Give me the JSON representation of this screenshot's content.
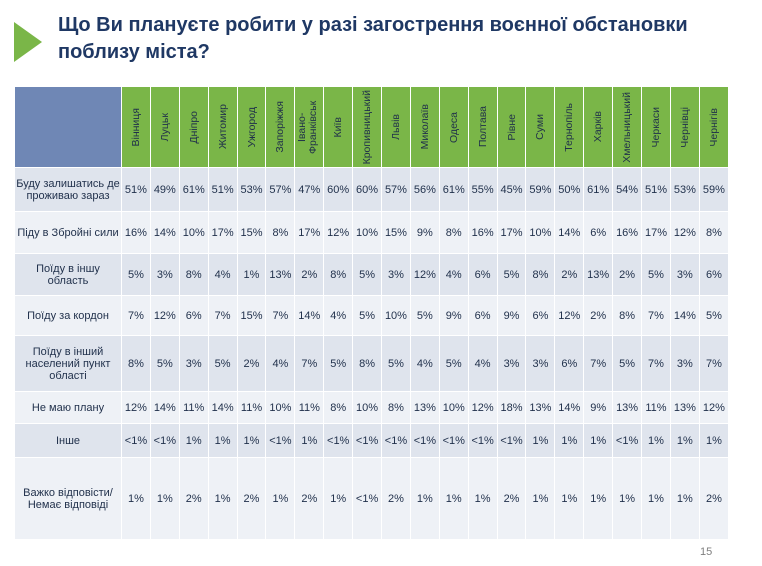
{
  "title": "Що Ви плануєте робити у разі загострення воєнної обстановки поблизу міста?",
  "page_number": "15",
  "colors": {
    "accent": "#7ab648",
    "header_blue": "#6f87b5",
    "title": "#1f3864"
  },
  "cities": [
    "Вінниця",
    "Луцьк",
    "Дніпро",
    "Житомир",
    "Ужгород",
    "Запоріжжя",
    "Івано-Франківськ",
    "Київ",
    "Кропивницький",
    "Львів",
    "Миколаїв",
    "Одеса",
    "Полтава",
    "Рівне",
    "Суми",
    "Тернопіль",
    "Харків",
    "Хмельницький",
    "Черкаси",
    "Чернівці",
    "Чернігів"
  ],
  "rows": [
    {
      "label": "Буду залишатись де проживаю зараз",
      "values": [
        "51%",
        "49%",
        "61%",
        "51%",
        "53%",
        "57%",
        "47%",
        "60%",
        "60%",
        "57%",
        "56%",
        "61%",
        "55%",
        "45%",
        "59%",
        "50%",
        "61%",
        "54%",
        "51%",
        "53%",
        "59%"
      ]
    },
    {
      "label": "Піду в Збройні сили",
      "values": [
        "16%",
        "14%",
        "10%",
        "17%",
        "15%",
        "8%",
        "17%",
        "12%",
        "10%",
        "15%",
        "9%",
        "8%",
        "16%",
        "17%",
        "10%",
        "14%",
        "6%",
        "16%",
        "17%",
        "12%",
        "8%"
      ]
    },
    {
      "label": "Поїду в іншу область",
      "values": [
        "5%",
        "3%",
        "8%",
        "4%",
        "1%",
        "13%",
        "2%",
        "8%",
        "5%",
        "3%",
        "12%",
        "4%",
        "6%",
        "5%",
        "8%",
        "2%",
        "13%",
        "2%",
        "5%",
        "3%",
        "6%"
      ]
    },
    {
      "label": "Поїду за кордон",
      "values": [
        "7%",
        "12%",
        "6%",
        "7%",
        "15%",
        "7%",
        "14%",
        "4%",
        "5%",
        "10%",
        "5%",
        "9%",
        "6%",
        "9%",
        "6%",
        "12%",
        "2%",
        "8%",
        "7%",
        "14%",
        "5%"
      ]
    },
    {
      "label": "Поїду в інший населений пункт області",
      "values": [
        "8%",
        "5%",
        "3%",
        "5%",
        "2%",
        "4%",
        "7%",
        "5%",
        "8%",
        "5%",
        "4%",
        "5%",
        "4%",
        "3%",
        "3%",
        "6%",
        "7%",
        "5%",
        "7%",
        "3%",
        "7%"
      ]
    },
    {
      "label": "Не маю плану",
      "values": [
        "12%",
        "14%",
        "11%",
        "14%",
        "11%",
        "10%",
        "11%",
        "8%",
        "10%",
        "8%",
        "13%",
        "10%",
        "12%",
        "18%",
        "13%",
        "14%",
        "9%",
        "13%",
        "11%",
        "13%",
        "12%"
      ]
    },
    {
      "label": "Інше",
      "values": [
        "<1%",
        "<1%",
        "1%",
        "1%",
        "1%",
        "<1%",
        "1%",
        "<1%",
        "<1%",
        "<1%",
        "<1%",
        "<1%",
        "<1%",
        "<1%",
        "1%",
        "1%",
        "1%",
        "<1%",
        "1%",
        "1%",
        "1%"
      ]
    },
    {
      "label": "Важко відповісти/Немає відповіді",
      "values": [
        "1%",
        "1%",
        "2%",
        "1%",
        "2%",
        "1%",
        "2%",
        "1%",
        "<1%",
        "2%",
        "1%",
        "1%",
        "1%",
        "2%",
        "1%",
        "1%",
        "1%",
        "1%",
        "1%",
        "1%",
        "2%"
      ]
    }
  ]
}
